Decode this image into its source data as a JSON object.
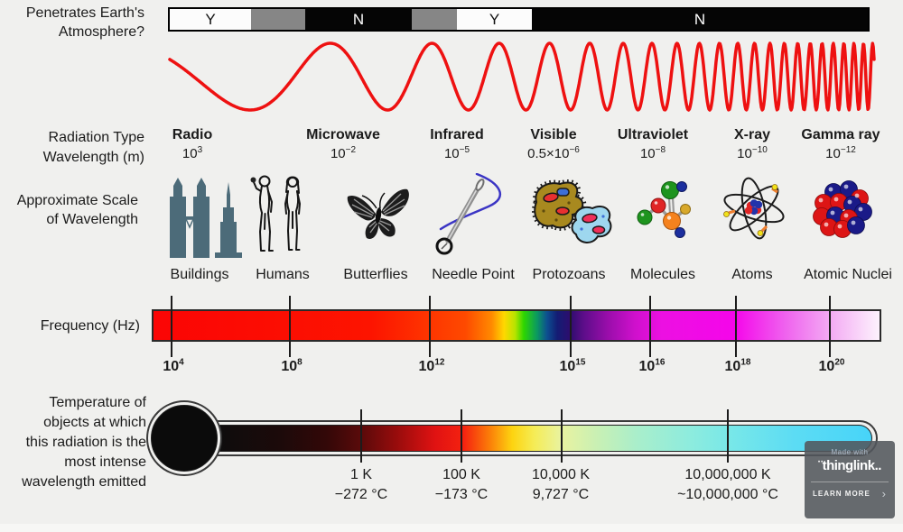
{
  "colors": {
    "wave": "#ee1111",
    "building": "#4c6b79",
    "badge_bg": "#52575c",
    "background": "#f0f0ee"
  },
  "atmosphere": {
    "label_line1": "Penetrates Earth's",
    "label_line2": "Atmosphere?",
    "segments": [
      {
        "label": "Y"
      },
      {
        "label": ""
      },
      {
        "label": "N"
      },
      {
        "label": ""
      },
      {
        "label": "Y"
      },
      {
        "label": "N"
      }
    ]
  },
  "types": {
    "row_label": "Radiation Type",
    "wavelength_label": "Wavelength (m)",
    "items": [
      {
        "name": "Radio",
        "prefix": "",
        "base": "10",
        "exp": "3"
      },
      {
        "name": "Microwave",
        "prefix": "",
        "base": "10",
        "exp": "−2"
      },
      {
        "name": "Infrared",
        "prefix": "",
        "base": "10",
        "exp": "−5"
      },
      {
        "name": "Visible",
        "prefix": "0.5×",
        "base": "10",
        "exp": "−6"
      },
      {
        "name": "Ultraviolet",
        "prefix": "",
        "base": "10",
        "exp": "−8"
      },
      {
        "name": "X-ray",
        "prefix": "",
        "base": "10",
        "exp": "−10"
      },
      {
        "name": "Gamma ray",
        "prefix": "",
        "base": "10",
        "exp": "−12"
      }
    ]
  },
  "scale": {
    "label_line1": "Approximate Scale",
    "label_line2": "of Wavelength",
    "items": [
      {
        "label": "Buildings"
      },
      {
        "label": "Humans"
      },
      {
        "label": "Butterflies"
      },
      {
        "label": "Needle Point"
      },
      {
        "label": "Protozoans"
      },
      {
        "label": "Molecules"
      },
      {
        "label": "Atoms"
      },
      {
        "label": "Atomic Nuclei"
      }
    ]
  },
  "frequency": {
    "label": "Frequency (Hz)",
    "ticks": [
      {
        "base": "10",
        "exp": "4"
      },
      {
        "base": "10",
        "exp": "8"
      },
      {
        "base": "10",
        "exp": "12"
      },
      {
        "base": "10",
        "exp": "15"
      },
      {
        "base": "10",
        "exp": "16"
      },
      {
        "base": "10",
        "exp": "18"
      },
      {
        "base": "10",
        "exp": "20"
      }
    ]
  },
  "temperature": {
    "label_lines": [
      "Temperature of",
      "objects at which",
      "this radiation is the",
      "most intense",
      "wavelength emitted"
    ],
    "ticks": [
      {
        "kelvin": "1 K",
        "celsius": "−272 °C"
      },
      {
        "kelvin": "100 K",
        "celsius": "−173 °C"
      },
      {
        "kelvin": "10,000 K",
        "celsius": "9,727 °C"
      },
      {
        "kelvin": "10,000,000 K",
        "celsius": "~10,000,000 °C"
      }
    ]
  },
  "badge": {
    "made_with": "Made with",
    "brand": "¨thinglink..",
    "cta": "LEARN MORE",
    "chevron": "›"
  }
}
